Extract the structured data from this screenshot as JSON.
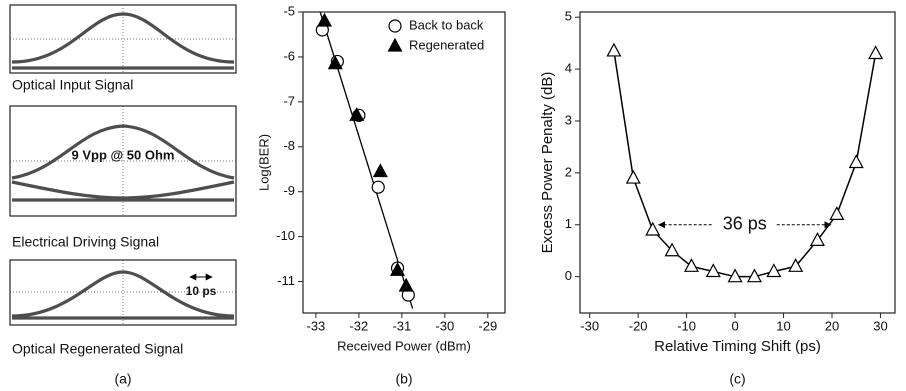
{
  "panel_a": {
    "captions": [
      "Optical Input Signal",
      "Electrical Driving Signal",
      "Optical Regenerated Signal"
    ],
    "annotations": [
      "9 Vpp @ 50 Ohm",
      "10 ps"
    ],
    "label": "(a)"
  },
  "chart_data": [
    {
      "type": "scatter",
      "label": "(b)",
      "x_label": "Received Power (dBm)",
      "y_label": "Log(BER)",
      "xlim": [
        -33.3,
        -28.6
      ],
      "xticks": [
        -33,
        -32,
        -31,
        -30,
        -29
      ],
      "ylim": [
        -11.7,
        -5
      ],
      "yticks": [
        -5,
        -6,
        -7,
        -8,
        -9,
        -10,
        -11
      ],
      "legend": "upper right",
      "series": [
        {
          "name": "Back to back",
          "marker": "circle",
          "filled": false,
          "color": "#000000",
          "x": [
            -32.85,
            -32.5,
            -32.0,
            -31.55,
            -31.1,
            -30.85
          ],
          "values": [
            -5.4,
            -6.1,
            -7.3,
            -8.9,
            -10.7,
            -11.3
          ]
        },
        {
          "name": "Regenerated",
          "marker": "triangle",
          "filled": true,
          "color": "#000000",
          "x": [
            -32.8,
            -32.55,
            -32.05,
            -31.5,
            -31.1,
            -30.9
          ],
          "values": [
            -5.2,
            -6.15,
            -7.3,
            -8.55,
            -10.75,
            -11.1
          ]
        }
      ],
      "fit": {
        "x": [
          -32.9,
          -30.75
        ],
        "values": [
          -5.0,
          -11.6
        ]
      }
    },
    {
      "type": "line",
      "label": "(c)",
      "x_label": "Relative Timing Shift (ps)",
      "y_label": "Excess Power Penalty (dB)",
      "xlim": [
        -32,
        33
      ],
      "xticks": [
        -30,
        -20,
        -10,
        0,
        10,
        20,
        30
      ],
      "ylim": [
        -0.7,
        5.1
      ],
      "yticks": [
        0,
        1,
        2,
        3,
        4,
        5
      ],
      "series": [
        {
          "marker": "triangle",
          "filled": false,
          "color": "#000000",
          "x": [
            -25,
            -21,
            -17,
            -13,
            -9,
            -4.5,
            0,
            4,
            8,
            12.5,
            17,
            21,
            25,
            29
          ],
          "values": [
            4.35,
            1.9,
            0.9,
            0.5,
            0.2,
            0.1,
            0.0,
            0.0,
            0.1,
            0.2,
            0.7,
            1.2,
            2.2,
            4.3
          ]
        }
      ],
      "annotation": {
        "text": "36 ps",
        "x": [
          -17,
          21
        ],
        "y": 1
      }
    }
  ]
}
